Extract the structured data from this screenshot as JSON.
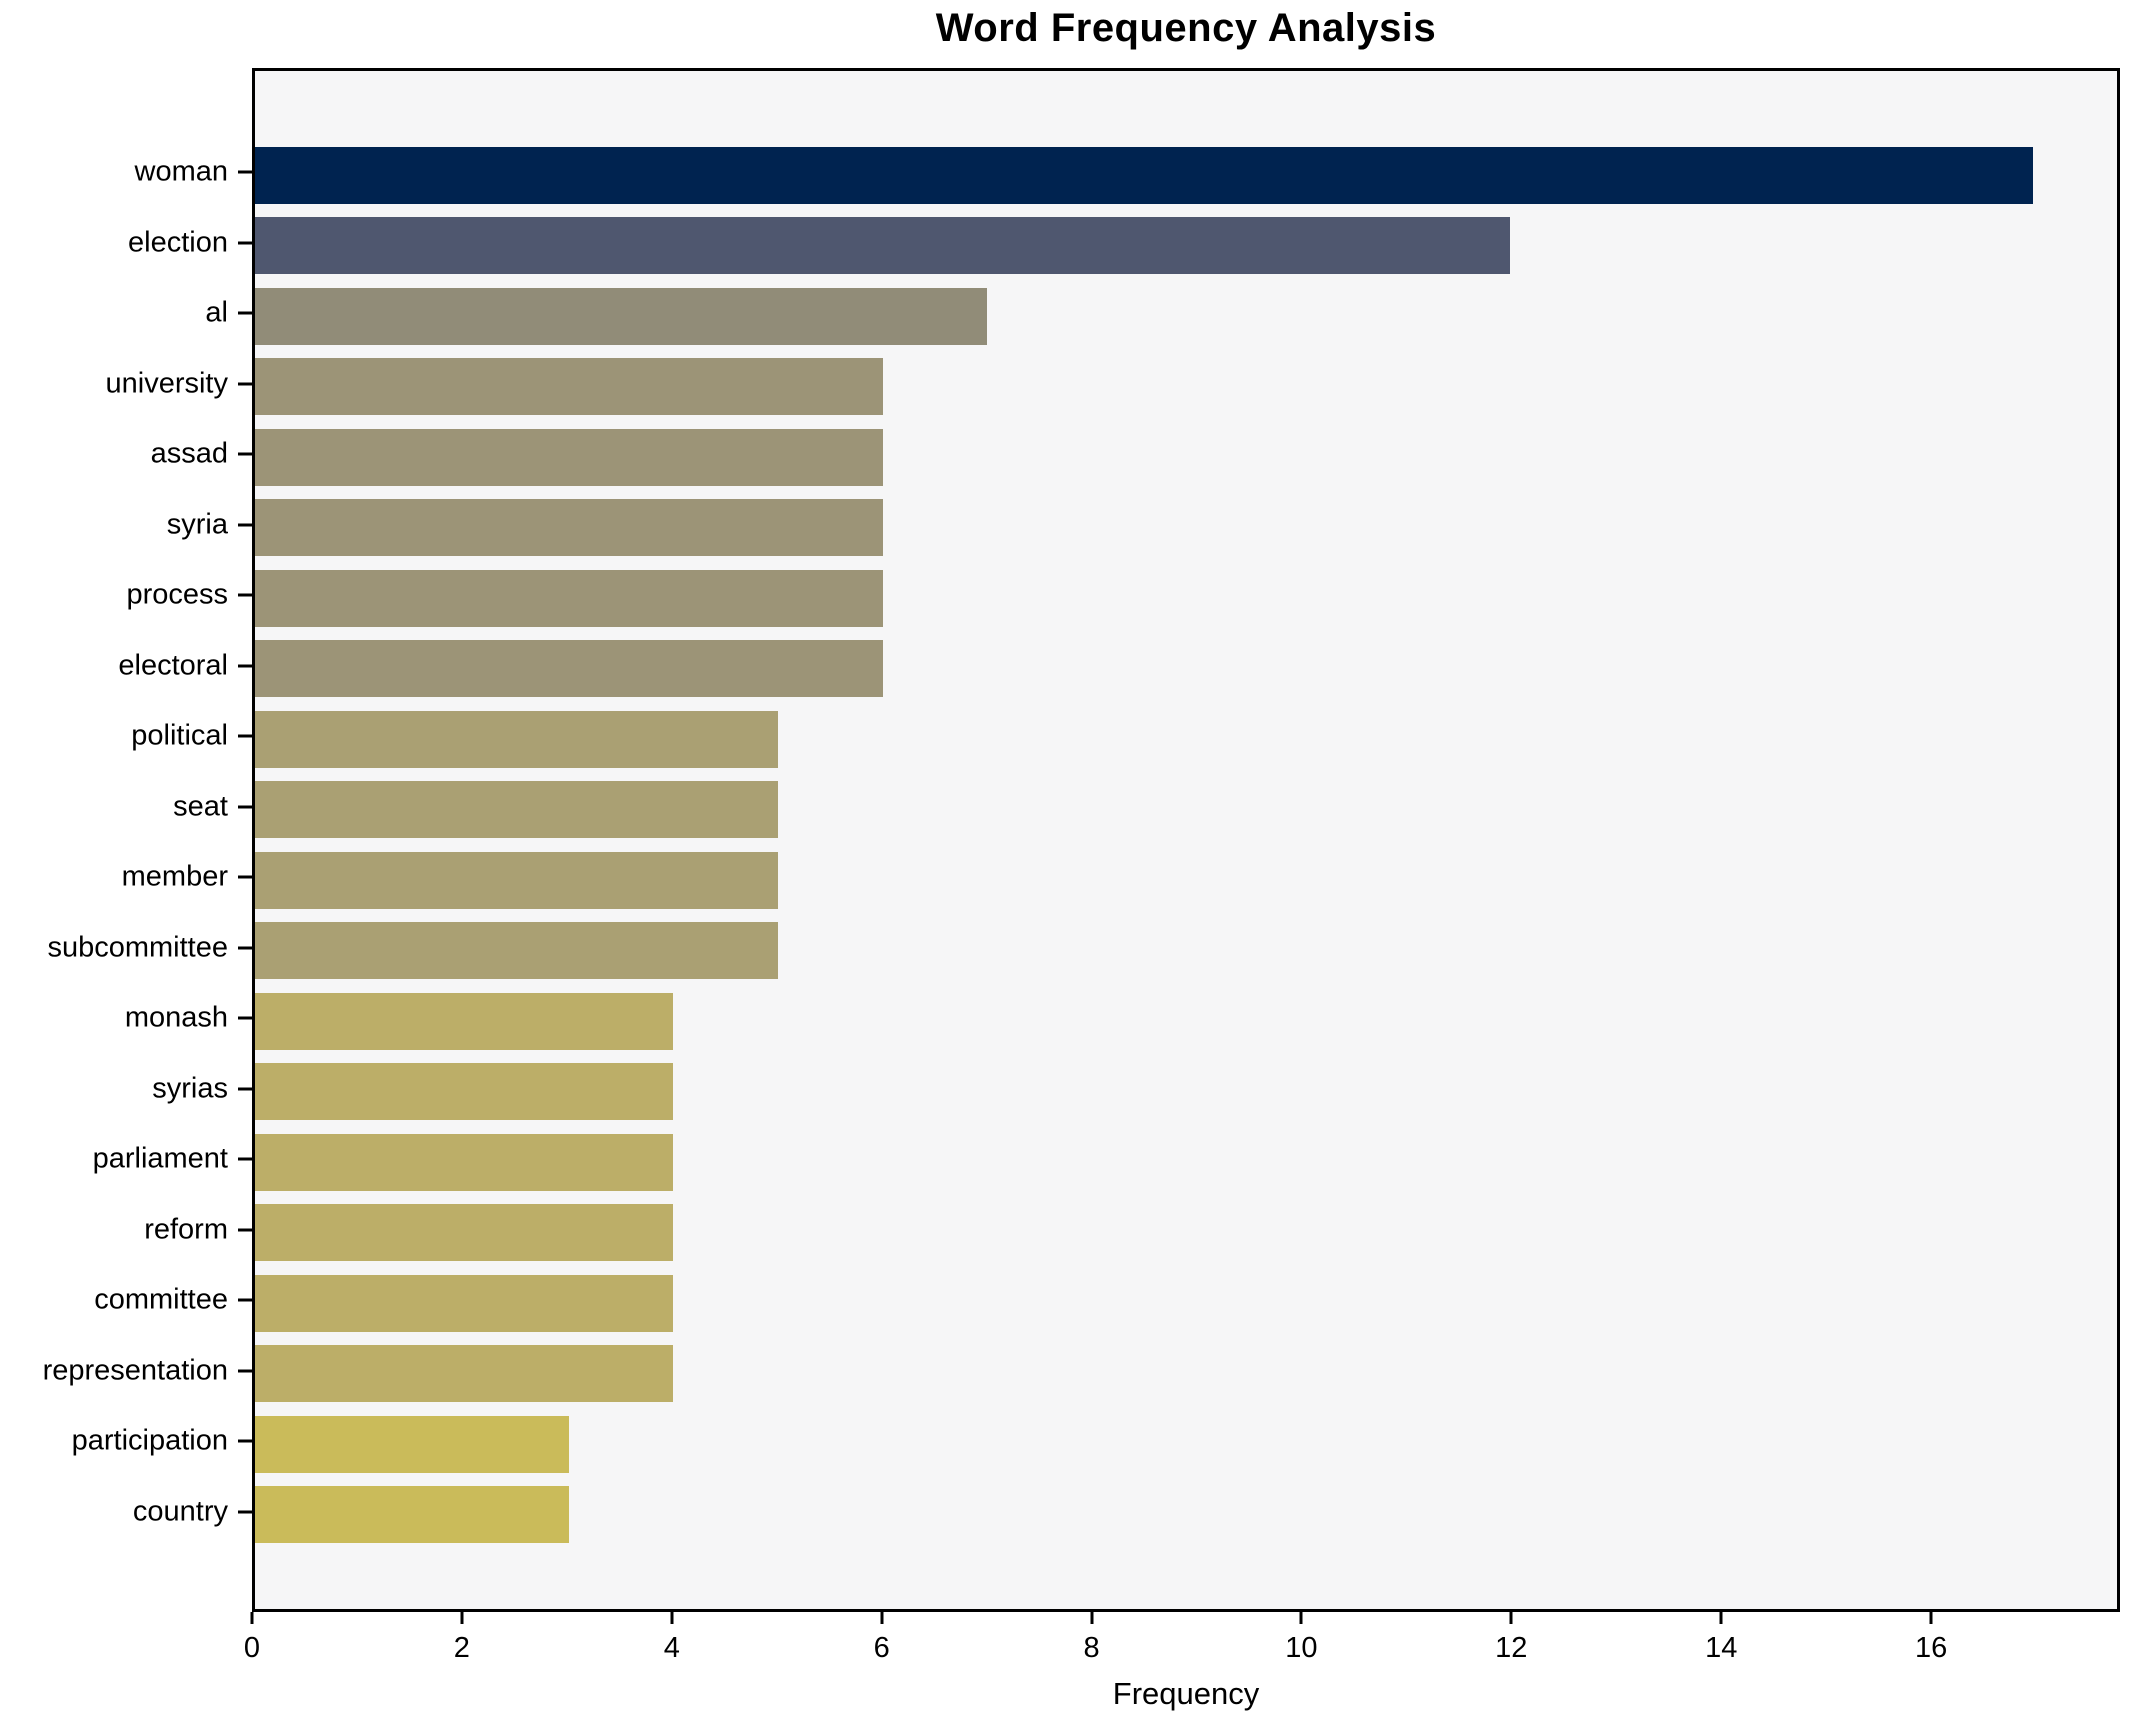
{
  "title": "Word Frequency Analysis",
  "chart_data": {
    "type": "bar",
    "orientation": "horizontal",
    "title": "Word Frequency Analysis",
    "xlabel": "Frequency",
    "ylabel": "",
    "categories": [
      "woman",
      "election",
      "al",
      "university",
      "assad",
      "syria",
      "process",
      "electoral",
      "political",
      "seat",
      "member",
      "subcommittee",
      "monash",
      "syrias",
      "parliament",
      "reform",
      "committee",
      "representation",
      "participation",
      "country"
    ],
    "values": [
      17,
      12,
      7,
      6,
      6,
      6,
      6,
      6,
      5,
      5,
      5,
      5,
      4,
      4,
      4,
      4,
      4,
      4,
      3,
      3
    ],
    "bar_colors": [
      "#002350",
      "#4f576f",
      "#918c78",
      "#9c9477",
      "#9c9477",
      "#9c9477",
      "#9c9477",
      "#9c9477",
      "#aaa073",
      "#aaa073",
      "#aaa073",
      "#aaa073",
      "#bcae68",
      "#bcae68",
      "#bcae68",
      "#bcae68",
      "#bcae68",
      "#bcae68",
      "#cabb5a",
      "#cabb5a"
    ],
    "xticks": [
      0,
      2,
      4,
      6,
      8,
      10,
      12,
      14,
      16
    ],
    "xlim": [
      0,
      17.8
    ],
    "grid": false,
    "legend_position": "none",
    "plot_background": "#f6f6f7",
    "figure_background": "#ffffff",
    "spine_color": "#000000"
  }
}
